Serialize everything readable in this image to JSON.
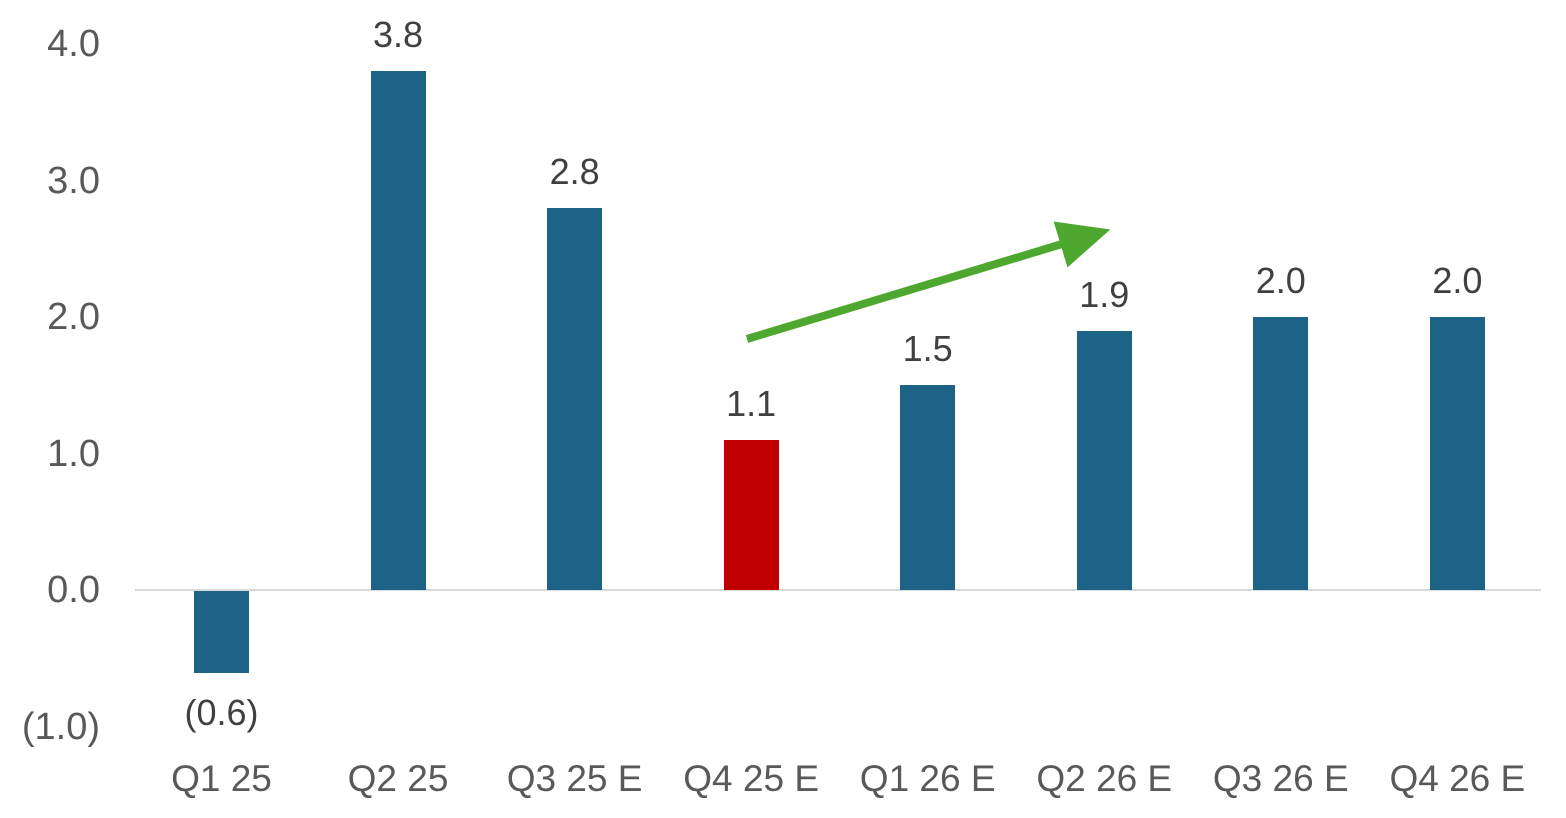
{
  "chart_data": {
    "type": "bar",
    "title": "",
    "xlabel": "",
    "ylabel": "",
    "categories": [
      "Q1 25",
      "Q2 25",
      "Q3 25 E",
      "Q4 25 E",
      "Q1 26 E",
      "Q2 26 E",
      "Q3 26 E",
      "Q4 26 E"
    ],
    "values": [
      -0.6,
      3.8,
      2.8,
      1.1,
      1.5,
      1.9,
      2.0,
      2.0
    ],
    "value_labels": [
      "(0.6)",
      "3.8",
      "2.8",
      "1.1",
      "1.5",
      "1.9",
      "2.0",
      "2.0"
    ],
    "bar_colors": [
      "#1c6387",
      "#1c6387",
      "#1c6387",
      "#c00000",
      "#1c6387",
      "#1c6387",
      "#1c6387",
      "#1c6387"
    ],
    "y_ticks": [
      {
        "label": "4.0",
        "value": 4.0
      },
      {
        "label": "3.0",
        "value": 3.0
      },
      {
        "label": "2.0",
        "value": 2.0
      },
      {
        "label": "1.0",
        "value": 1.0
      },
      {
        "label": "0.0",
        "value": 0.0
      },
      {
        "label": "(1.0)",
        "value": -1.0
      }
    ],
    "ylim": [
      -1.0,
      4.0
    ],
    "grid": false,
    "legend": false,
    "annotations": [
      {
        "type": "arrow",
        "description": "upward trend arrow over forecast bars",
        "color": "#4ea72e"
      }
    ]
  },
  "colors": {
    "bar_blue": "#1c6387",
    "bar_red": "#c00000",
    "arrow_green": "#4ea72e",
    "axis_line": "#d9d9d9",
    "tick_text": "#595959",
    "value_text": "#404040"
  }
}
